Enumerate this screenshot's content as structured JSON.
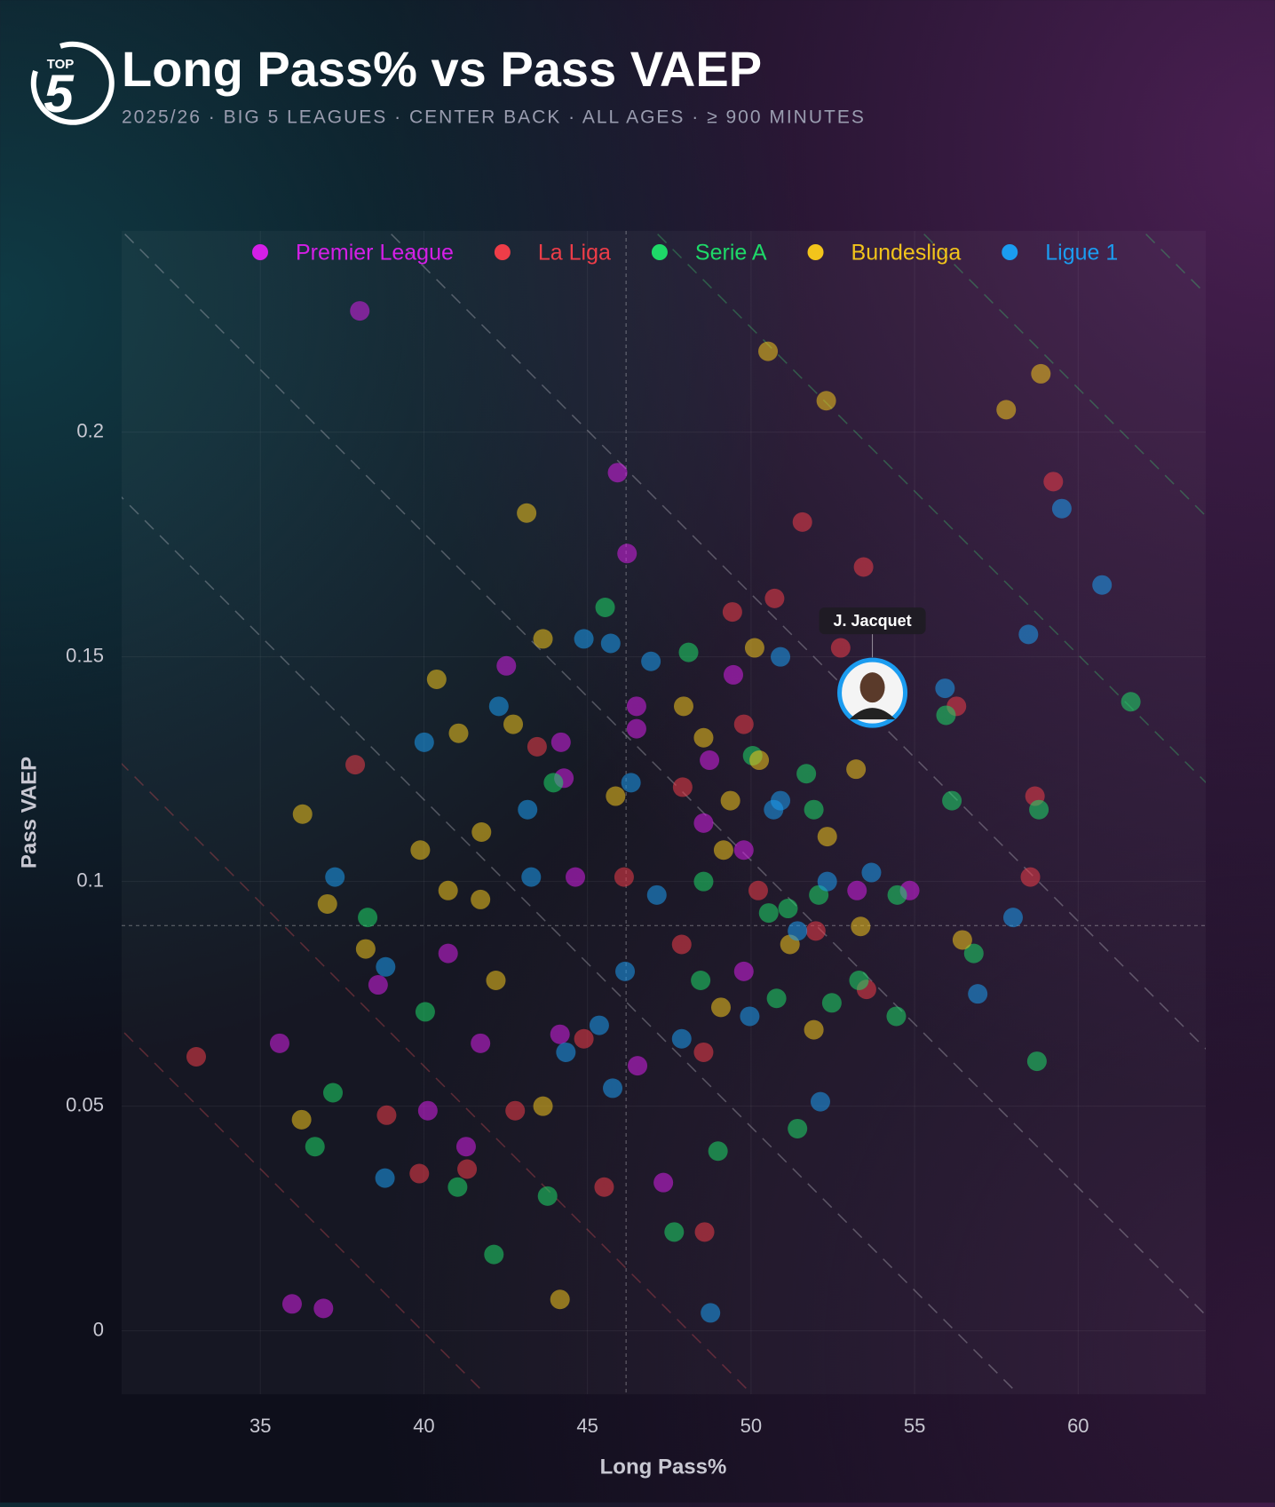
{
  "logo": {
    "top": "TOP",
    "number": "5"
  },
  "chart_data": {
    "type": "scatter",
    "title": "Long Pass% vs Pass VAEP",
    "subtitle": "2025/26 · BIG 5 LEAGUES · CENTER BACK · ALL AGES · ≥ 900 MINUTES",
    "x_label": "Long Pass%",
    "y_label": "Pass VAEP",
    "xlim": [
      30.76,
      63.9
    ],
    "ylim": [
      -0.0141,
      0.2448
    ],
    "xticks": [
      35,
      40,
      45,
      50,
      55,
      60
    ],
    "yticks": [
      0,
      0.05,
      0.1,
      0.15,
      0.2
    ],
    "grid": true,
    "reference_lines": {
      "x": 46.18,
      "y": 0.0902
    },
    "highlight": {
      "label": "J. Jacquet",
      "x": 53.71,
      "y": 0.142
    },
    "series": [
      {
        "name": "Premier League",
        "color": "#d41fe6",
        "x": [
          38.04,
          45.92,
          46.21,
          42.52,
          49.46,
          46.5,
          46.5,
          44.19,
          48.73,
          44.28,
          53.24,
          54.85,
          44.63,
          49.78,
          49.78,
          35.59,
          35.97,
          36.93,
          38.6,
          40.12,
          41.29,
          41.73,
          44.16,
          47.32,
          46.53,
          48.55,
          40.74
        ],
        "values": [
          0.227,
          0.191,
          0.173,
          0.148,
          0.146,
          0.139,
          0.134,
          0.131,
          0.127,
          0.123,
          0.098,
          0.098,
          0.101,
          0.107,
          0.08,
          0.064,
          0.006,
          0.005,
          0.077,
          0.049,
          0.041,
          0.064,
          0.066,
          0.033,
          0.059,
          0.113,
          0.084
        ]
      },
      {
        "name": "La Liga",
        "color": "#ee3d48",
        "x": [
          59.24,
          51.57,
          53.44,
          50.72,
          52.74,
          49.43,
          37.9,
          43.46,
          58.68,
          58.54,
          33.04,
          47.91,
          50.22,
          46.12,
          51.98,
          44.89,
          48.55,
          38.86,
          39.86,
          45.51,
          48.58,
          42.79,
          53.53,
          56.28,
          49.78,
          47.88,
          41.32
        ],
        "values": [
          0.189,
          0.18,
          0.17,
          0.163,
          0.152,
          0.16,
          0.126,
          0.13,
          0.119,
          0.101,
          0.061,
          0.121,
          0.098,
          0.101,
          0.089,
          0.065,
          0.062,
          0.048,
          0.035,
          0.032,
          0.022,
          0.049,
          0.076,
          0.139,
          0.135,
          0.086,
          0.036
        ]
      },
      {
        "name": "Serie A",
        "color": "#1ed968",
        "x": [
          45.54,
          48.09,
          61.61,
          55.96,
          56.14,
          58.8,
          50.05,
          51.69,
          51.92,
          52.07,
          51.13,
          50.54,
          54.47,
          56.81,
          53.3,
          54.44,
          58.74,
          52.47,
          50.78,
          51.42,
          48.99,
          47.65,
          42.14,
          43.78,
          37.22,
          36.67,
          38.28,
          40.04,
          41.03,
          43.96,
          48.55,
          48.46
        ],
        "values": [
          0.161,
          0.151,
          0.14,
          0.137,
          0.118,
          0.116,
          0.128,
          0.124,
          0.116,
          0.097,
          0.094,
          0.093,
          0.097,
          0.084,
          0.078,
          0.07,
          0.06,
          0.073,
          0.074,
          0.045,
          0.04,
          0.022,
          0.017,
          0.03,
          0.053,
          0.041,
          0.092,
          0.071,
          0.032,
          0.122,
          0.1,
          0.078
        ]
      },
      {
        "name": "Bundesliga",
        "color": "#f2c41b",
        "x": [
          50.52,
          58.86,
          52.3,
          57.8,
          43.14,
          43.64,
          40.39,
          50.11,
          47.94,
          42.73,
          41.06,
          48.55,
          50.25,
          53.21,
          49.37,
          45.86,
          52.33,
          41.76,
          49.16,
          39.89,
          36.29,
          37.05,
          40.74,
          41.73,
          51.19,
          56.46,
          38.22,
          51.92,
          49.08,
          36.26,
          43.64,
          42.2,
          44.16,
          53.35
        ],
        "values": [
          0.218,
          0.213,
          0.207,
          0.205,
          0.182,
          0.154,
          0.145,
          0.152,
          0.139,
          0.135,
          0.133,
          0.132,
          0.127,
          0.125,
          0.118,
          0.119,
          0.11,
          0.111,
          0.107,
          0.107,
          0.115,
          0.095,
          0.098,
          0.096,
          0.086,
          0.087,
          0.085,
          0.067,
          0.072,
          0.047,
          0.05,
          0.078,
          0.007,
          0.09
        ]
      },
      {
        "name": "Ligue 1",
        "color": "#1b9cf0",
        "x": [
          59.5,
          60.73,
          58.48,
          44.89,
          45.71,
          50.9,
          46.94,
          55.93,
          40.01,
          42.29,
          50.9,
          50.69,
          43.17,
          46.33,
          37.28,
          43.28,
          47.12,
          53.68,
          52.33,
          58.01,
          51.42,
          56.93,
          49.96,
          46.15,
          45.36,
          45.77,
          52.12,
          38.81,
          48.76,
          47.88,
          44.34,
          38.83
        ],
        "values": [
          0.183,
          0.166,
          0.155,
          0.154,
          0.153,
          0.15,
          0.149,
          0.143,
          0.131,
          0.139,
          0.118,
          0.116,
          0.116,
          0.122,
          0.101,
          0.101,
          0.097,
          0.102,
          0.1,
          0.092,
          0.089,
          0.075,
          0.07,
          0.08,
          0.068,
          0.054,
          0.051,
          0.034,
          0.004,
          0.065,
          0.062,
          0.081
        ]
      }
    ]
  }
}
